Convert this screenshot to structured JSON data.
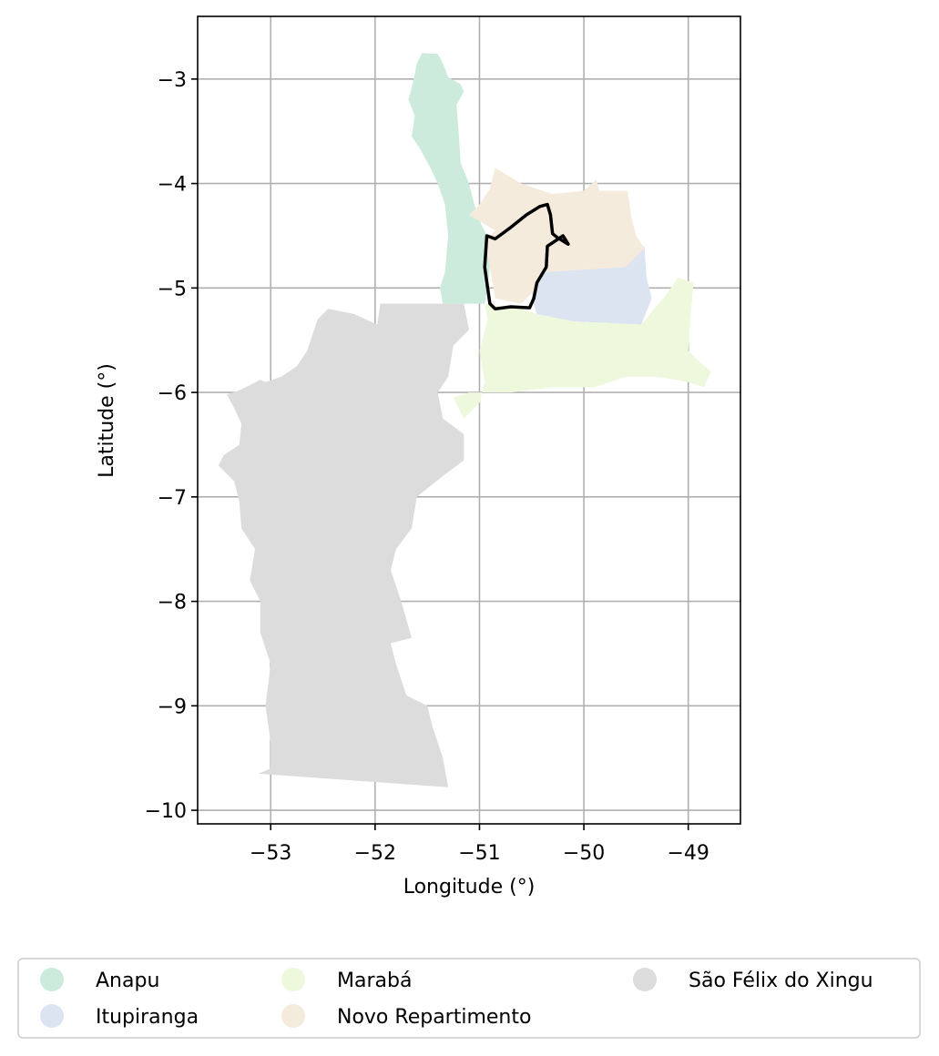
{
  "chart_data": {
    "type": "map",
    "xlabel": "Longitude (°)",
    "ylabel": "Latitude (°)",
    "xlim": [
      -53.7,
      -48.5
    ],
    "ylim": [
      -10.13,
      -2.4
    ],
    "x_ticks": [
      -53,
      -52,
      -51,
      -50,
      -49
    ],
    "y_ticks": [
      -3,
      -4,
      -5,
      -6,
      -7,
      -8,
      -9,
      -10
    ],
    "x_tick_labels": [
      "−53",
      "−52",
      "−51",
      "−50",
      "−49"
    ],
    "y_tick_labels": [
      "−3",
      "−4",
      "−5",
      "−6",
      "−7",
      "−8",
      "−9",
      "−10"
    ],
    "grid": true,
    "legend_position": "bottom",
    "regions": [
      {
        "name": "Anapu",
        "color": "#ccebdc",
        "polygon": [
          [
            -51.55,
            -2.75
          ],
          [
            -51.4,
            -2.76
          ],
          [
            -51.35,
            -2.85
          ],
          [
            -51.3,
            -2.98
          ],
          [
            -51.18,
            -3.05
          ],
          [
            -51.15,
            -3.12
          ],
          [
            -51.22,
            -3.25
          ],
          [
            -51.2,
            -3.5
          ],
          [
            -51.18,
            -3.8
          ],
          [
            -51.1,
            -4.0
          ],
          [
            -51.05,
            -4.2
          ],
          [
            -50.98,
            -4.4
          ],
          [
            -50.9,
            -4.55
          ],
          [
            -50.85,
            -4.7
          ],
          [
            -50.9,
            -4.8
          ],
          [
            -50.92,
            -5.0
          ],
          [
            -50.95,
            -5.15
          ],
          [
            -51.35,
            -5.15
          ],
          [
            -51.38,
            -5.0
          ],
          [
            -51.33,
            -4.85
          ],
          [
            -51.3,
            -4.5
          ],
          [
            -51.33,
            -4.2
          ],
          [
            -51.4,
            -4.0
          ],
          [
            -51.47,
            -3.85
          ],
          [
            -51.58,
            -3.65
          ],
          [
            -51.65,
            -3.55
          ],
          [
            -51.62,
            -3.35
          ],
          [
            -51.68,
            -3.2
          ],
          [
            -51.63,
            -3.0
          ],
          [
            -51.6,
            -2.85
          ]
        ]
      },
      {
        "name": "Itupiranga",
        "color": "#dce3f1",
        "polygon": [
          [
            -50.42,
            -4.85
          ],
          [
            -50.1,
            -4.83
          ],
          [
            -49.6,
            -4.8
          ],
          [
            -49.42,
            -4.6
          ],
          [
            -49.4,
            -4.9
          ],
          [
            -49.35,
            -5.1
          ],
          [
            -49.45,
            -5.35
          ],
          [
            -50.1,
            -5.32
          ],
          [
            -50.45,
            -5.25
          ],
          [
            -50.5,
            -5.1
          ],
          [
            -50.48,
            -4.95
          ]
        ]
      },
      {
        "name": "Marabá",
        "color": "#eef8dc",
        "polygon": [
          [
            -50.95,
            -5.15
          ],
          [
            -50.6,
            -5.2
          ],
          [
            -50.45,
            -5.25
          ],
          [
            -50.1,
            -5.32
          ],
          [
            -49.45,
            -5.35
          ],
          [
            -49.2,
            -5.05
          ],
          [
            -49.1,
            -4.9
          ],
          [
            -48.95,
            -4.95
          ],
          [
            -48.98,
            -5.3
          ],
          [
            -49.0,
            -5.6
          ],
          [
            -48.9,
            -5.7
          ],
          [
            -48.78,
            -5.8
          ],
          [
            -48.85,
            -5.95
          ],
          [
            -49.0,
            -5.9
          ],
          [
            -49.3,
            -5.85
          ],
          [
            -49.6,
            -5.85
          ],
          [
            -49.9,
            -5.95
          ],
          [
            -50.3,
            -5.95
          ],
          [
            -50.7,
            -6.0
          ],
          [
            -51.1,
            -6.0
          ],
          [
            -51.25,
            -6.05
          ],
          [
            -51.15,
            -6.25
          ],
          [
            -51.0,
            -6.1
          ],
          [
            -50.95,
            -5.9
          ],
          [
            -51.0,
            -5.6
          ],
          [
            -50.92,
            -5.3
          ]
        ]
      },
      {
        "name": "Novo Repartimento",
        "color": "#f5ebdc",
        "polygon": [
          [
            -51.1,
            -4.3
          ],
          [
            -50.85,
            -4.45
          ],
          [
            -50.95,
            -4.55
          ],
          [
            -50.9,
            -4.8
          ],
          [
            -50.85,
            -5.1
          ],
          [
            -50.6,
            -5.15
          ],
          [
            -50.45,
            -5.0
          ],
          [
            -50.42,
            -4.85
          ],
          [
            -50.1,
            -4.83
          ],
          [
            -49.6,
            -4.8
          ],
          [
            -49.42,
            -4.62
          ],
          [
            -49.5,
            -4.5
          ],
          [
            -49.55,
            -4.3
          ],
          [
            -49.58,
            -4.07
          ],
          [
            -49.85,
            -4.07
          ],
          [
            -49.88,
            -3.96
          ],
          [
            -50.0,
            -4.07
          ],
          [
            -50.3,
            -4.1
          ],
          [
            -50.6,
            -4.0
          ],
          [
            -50.85,
            -3.85
          ],
          [
            -50.9,
            -4.05
          ],
          [
            -51.0,
            -4.2
          ]
        ]
      },
      {
        "name": "São Félix do Xingu",
        "color": "#dcdcdc",
        "polygon": [
          [
            -51.15,
            -5.15
          ],
          [
            -51.95,
            -5.15
          ],
          [
            -51.98,
            -5.35
          ],
          [
            -52.2,
            -5.25
          ],
          [
            -52.45,
            -5.2
          ],
          [
            -52.55,
            -5.3
          ],
          [
            -52.65,
            -5.6
          ],
          [
            -52.75,
            -5.75
          ],
          [
            -52.9,
            -5.85
          ],
          [
            -53.05,
            -5.9
          ],
          [
            -53.1,
            -5.88
          ],
          [
            -53.3,
            -5.98
          ],
          [
            -53.42,
            -6.02
          ],
          [
            -53.35,
            -6.15
          ],
          [
            -53.28,
            -6.3
          ],
          [
            -53.3,
            -6.5
          ],
          [
            -53.45,
            -6.6
          ],
          [
            -53.5,
            -6.7
          ],
          [
            -53.35,
            -6.85
          ],
          [
            -53.3,
            -7.05
          ],
          [
            -53.28,
            -7.3
          ],
          [
            -53.15,
            -7.5
          ],
          [
            -53.2,
            -7.8
          ],
          [
            -53.1,
            -8.0
          ],
          [
            -53.1,
            -8.3
          ],
          [
            -53.0,
            -8.6
          ],
          [
            -53.05,
            -9.0
          ],
          [
            -53.0,
            -9.35
          ],
          [
            -53.0,
            -9.6
          ],
          [
            -53.12,
            -9.65
          ],
          [
            -51.3,
            -9.78
          ],
          [
            -51.35,
            -9.5
          ],
          [
            -51.45,
            -9.2
          ],
          [
            -51.5,
            -9.0
          ],
          [
            -51.7,
            -8.9
          ],
          [
            -51.8,
            -8.6
          ],
          [
            -51.85,
            -8.4
          ],
          [
            -51.65,
            -8.35
          ],
          [
            -51.75,
            -8.0
          ],
          [
            -51.85,
            -7.7
          ],
          [
            -51.8,
            -7.5
          ],
          [
            -51.65,
            -7.3
          ],
          [
            -51.6,
            -7.0
          ],
          [
            -51.35,
            -6.8
          ],
          [
            -51.15,
            -6.65
          ],
          [
            -51.15,
            -6.4
          ],
          [
            -51.35,
            -6.25
          ],
          [
            -51.4,
            -6.0
          ],
          [
            -51.3,
            -5.85
          ],
          [
            -51.25,
            -5.55
          ],
          [
            -51.1,
            -5.4
          ]
        ]
      }
    ],
    "outline": {
      "color": "#000000",
      "polygon": [
        [
          -50.9,
          -5.15
        ],
        [
          -50.95,
          -4.8
        ],
        [
          -50.93,
          -4.5
        ],
        [
          -50.85,
          -4.53
        ],
        [
          -50.7,
          -4.42
        ],
        [
          -50.55,
          -4.3
        ],
        [
          -50.42,
          -4.22
        ],
        [
          -50.35,
          -4.2
        ],
        [
          -50.32,
          -4.3
        ],
        [
          -50.3,
          -4.48
        ],
        [
          -50.25,
          -4.52
        ],
        [
          -50.15,
          -4.58
        ],
        [
          -50.2,
          -4.5
        ],
        [
          -50.35,
          -4.6
        ],
        [
          -50.36,
          -4.8
        ],
        [
          -50.45,
          -4.95
        ],
        [
          -50.48,
          -5.1
        ],
        [
          -50.52,
          -5.19
        ],
        [
          -50.7,
          -5.18
        ],
        [
          -50.85,
          -5.2
        ]
      ]
    }
  },
  "legend": {
    "items": [
      {
        "label": "Anapu",
        "color": "#ccebdc"
      },
      {
        "label": "Itupiranga",
        "color": "#dce3f1"
      },
      {
        "label": "Marabá",
        "color": "#eef8dc"
      },
      {
        "label": "Novo Repartimento",
        "color": "#f5ebdc"
      },
      {
        "label": "São Félix do Xingu",
        "color": "#dcdcdc"
      }
    ]
  }
}
